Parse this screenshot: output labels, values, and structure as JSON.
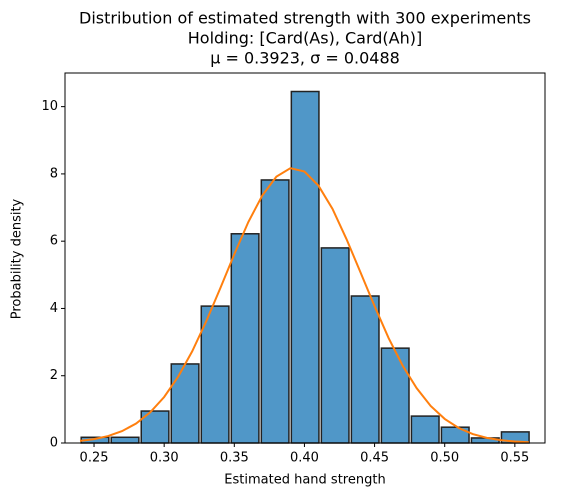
{
  "chart_data": {
    "type": "histogram",
    "title": [
      "Distribution of estimated strength with 300 experiments",
      "Holding: [Card(As), Card(Ah)]",
      "μ = 0.3923, σ = 0.0488"
    ],
    "x_label": "Estimated hand strength",
    "y_label": "Probability density",
    "bins": [
      0.24,
      0.2614,
      0.2828,
      0.3042,
      0.3256,
      0.347,
      0.3684,
      0.3898,
      0.4112,
      0.4326,
      0.454,
      0.4754,
      0.4968,
      0.5182,
      0.5396,
      0.561
    ],
    "values": [
      0.17,
      0.17,
      0.95,
      2.35,
      4.07,
      6.22,
      7.82,
      10.45,
      5.8,
      4.37,
      2.82,
      0.8,
      0.47,
      0.15,
      0.33
    ],
    "color": "#5097c8",
    "edgecolor": "#222222",
    "curve": {
      "color": "#ff7f0e",
      "x": [
        0.24,
        0.25,
        0.26,
        0.27,
        0.28,
        0.29,
        0.3,
        0.31,
        0.32,
        0.33,
        0.34,
        0.35,
        0.36,
        0.37,
        0.38,
        0.39,
        0.4,
        0.41,
        0.42,
        0.43,
        0.44,
        0.45,
        0.46,
        0.47,
        0.48,
        0.49,
        0.5,
        0.51,
        0.52,
        0.53,
        0.54,
        0.55,
        0.56
      ],
      "y": [
        0.063,
        0.116,
        0.207,
        0.354,
        0.579,
        0.909,
        1.368,
        1.973,
        2.727,
        3.62,
        4.6,
        5.61,
        6.57,
        7.36,
        7.92,
        8.17,
        8.07,
        7.65,
        6.96,
        6.06,
        5.07,
        4.07,
        3.12,
        2.3,
        1.63,
        1.1,
        0.716,
        0.446,
        0.266,
        0.152,
        0.084,
        0.044,
        0.022
      ]
    },
    "xlim": [
      0.2293,
      0.5715
    ],
    "ylim": [
      0,
      11
    ],
    "xticks": [
      {
        "value": 0.25,
        "label": "0.25"
      },
      {
        "value": 0.3,
        "label": "0.30"
      },
      {
        "value": 0.35,
        "label": "0.35"
      },
      {
        "value": 0.4,
        "label": "0.40"
      },
      {
        "value": 0.45,
        "label": "0.45"
      },
      {
        "value": 0.5,
        "label": "0.50"
      },
      {
        "value": 0.55,
        "label": "0.55"
      }
    ],
    "yticks": [
      0,
      2,
      4,
      6,
      8,
      10
    ]
  }
}
